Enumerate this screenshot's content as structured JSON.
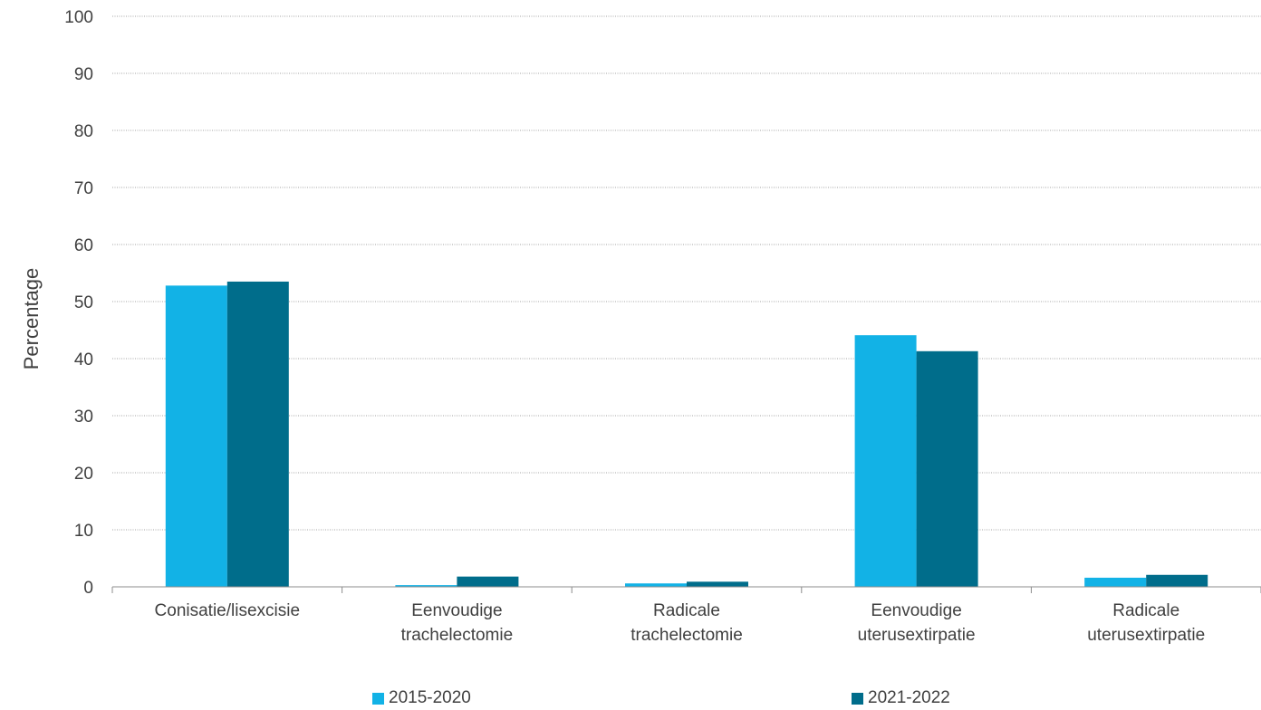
{
  "chart_data": {
    "type": "bar",
    "categories": [
      [
        "Conisatie/lisexcisie"
      ],
      [
        "Eenvoudige",
        "trachelectomie"
      ],
      [
        "Radicale",
        "trachelectomie"
      ],
      [
        "Eenvoudige",
        "uterusextirpatie"
      ],
      [
        "Radicale",
        "uterusextirpatie"
      ]
    ],
    "series": [
      {
        "name": "2015-2020",
        "color": "#12b2e6",
        "values": [
          52.8,
          0.3,
          0.6,
          44.1,
          1.6
        ]
      },
      {
        "name": "2021-2022",
        "color": "#006d8b",
        "values": [
          53.5,
          1.8,
          0.9,
          41.3,
          2.1
        ]
      }
    ],
    "ylabel": "Percentage",
    "ylim": [
      0,
      100
    ],
    "yticks": [
      0,
      10,
      20,
      30,
      40,
      50,
      60,
      70,
      80,
      90,
      100
    ],
    "grid": true,
    "legend": "bottom"
  }
}
